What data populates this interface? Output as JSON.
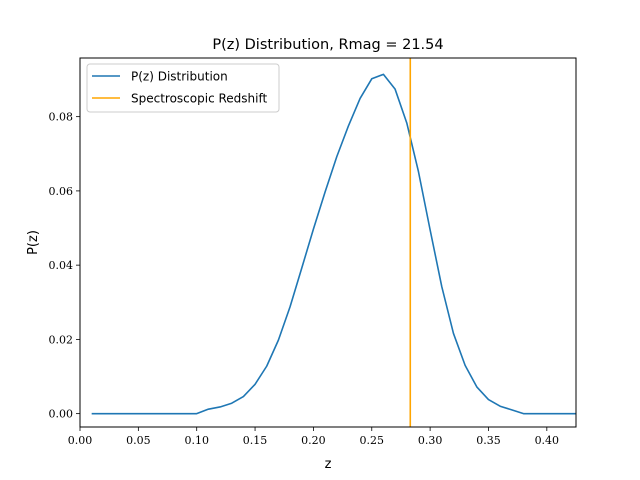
{
  "chart_data": {
    "type": "line",
    "title": "P(z) Distribution, Rmag = 21.54",
    "xlabel": "z",
    "ylabel": "P(z)",
    "xlim": [
      0.0,
      0.425
    ],
    "ylim": [
      -0.0036,
      0.0958
    ],
    "xticks": [
      "0.00",
      "0.05",
      "0.10",
      "0.15",
      "0.20",
      "0.25",
      "0.30",
      "0.35",
      "0.40"
    ],
    "yticks": [
      "0.00",
      "0.02",
      "0.04",
      "0.06",
      "0.08"
    ],
    "grid": false,
    "legend_position": "upper-left",
    "series": [
      {
        "name": "P(z) Distribution",
        "color": "#1f77b4",
        "x": [
          0.01,
          0.02,
          0.03,
          0.04,
          0.05,
          0.06,
          0.07,
          0.08,
          0.09,
          0.1,
          0.11,
          0.12,
          0.13,
          0.14,
          0.15,
          0.16,
          0.17,
          0.18,
          0.19,
          0.2,
          0.21,
          0.22,
          0.23,
          0.24,
          0.25,
          0.26,
          0.27,
          0.28,
          0.29,
          0.3,
          0.31,
          0.32,
          0.33,
          0.34,
          0.35,
          0.36,
          0.37,
          0.38,
          0.39,
          0.4,
          0.41,
          0.42,
          0.425
        ],
        "y": [
          0.0,
          0.0,
          0.0,
          0.0,
          0.0,
          0.0,
          0.0,
          0.0,
          0.0,
          0.0,
          0.0012,
          0.0018,
          0.0028,
          0.0046,
          0.0079,
          0.0128,
          0.0198,
          0.0288,
          0.0392,
          0.0497,
          0.0597,
          0.0692,
          0.0775,
          0.0849,
          0.0902,
          0.0914,
          0.0874,
          0.0783,
          0.0652,
          0.0495,
          0.0342,
          0.0216,
          0.013,
          0.0072,
          0.0038,
          0.002,
          0.001,
          0.0,
          0.0,
          0.0,
          0.0,
          0.0,
          0.0
        ]
      },
      {
        "name": "Spectroscopic Redshift",
        "color": "#ffa500",
        "vline_x": 0.283
      }
    ]
  }
}
